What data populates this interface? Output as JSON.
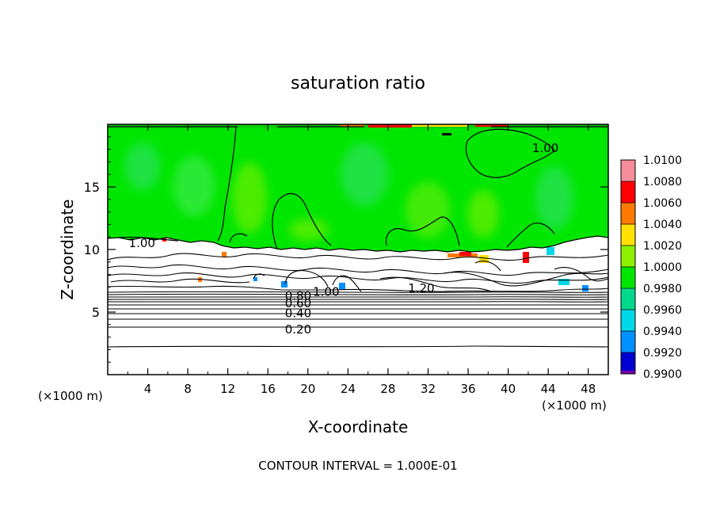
{
  "chart_data": {
    "type": "heatmap",
    "title": "saturation ratio",
    "xlabel": "X-coordinate",
    "ylabel": "Z-coordinate",
    "x_unit_left": "(×1000 m)",
    "x_unit_right": "(×1000 m)",
    "xlim": [
      0,
      50
    ],
    "ylim": [
      0,
      20
    ],
    "x_ticks": [
      4,
      8,
      12,
      16,
      20,
      24,
      28,
      32,
      36,
      40,
      44,
      48
    ],
    "y_ticks": [
      5,
      10,
      15
    ],
    "footer": "CONTOUR INTERVAL = 1.000E-01",
    "colorbar": {
      "labels": [
        "1.0100",
        "1.0080",
        "1.0060",
        "1.0040",
        "1.0020",
        "1.0000",
        "0.9980",
        "0.9960",
        "0.9940",
        "0.9920",
        "0.9900"
      ],
      "colors": [
        "#f48c9a",
        "#ff0000",
        "#ff7a00",
        "#ffe000",
        "#8cf000",
        "#00e600",
        "#00d88c",
        "#00d8e8",
        "#0090ff",
        "#0000d0",
        "#7a00a8"
      ],
      "min": 0.99,
      "max": 1.01
    },
    "contour_interval": 0.1,
    "contour_labels": [
      {
        "text": "0.20",
        "x": 17.7,
        "z": 3.6
      },
      {
        "text": "0.40",
        "x": 17.7,
        "z": 4.9
      },
      {
        "text": "0.60",
        "x": 17.7,
        "z": 5.7
      },
      {
        "text": "0.80",
        "x": 17.7,
        "z": 6.3
      },
      {
        "text": "1.00",
        "x": 20.5,
        "z": 6.6
      },
      {
        "text": "1.20",
        "x": 30.0,
        "z": 6.9
      },
      {
        "text": "1.00",
        "x": 2.1,
        "z": 10.5
      },
      {
        "text": "1.00",
        "x": 42.4,
        "z": 18.1
      }
    ],
    "layers": {
      "cloud_top_z": 10.4,
      "cloud_base_z": 7.2
    }
  }
}
